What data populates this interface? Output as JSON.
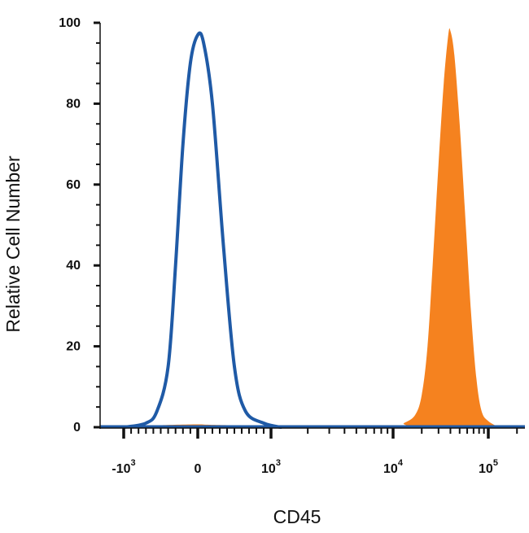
{
  "chart_data": {
    "type": "area",
    "xlabel": "CD45",
    "ylabel": "Relative Cell Number",
    "x_scale": "biexponential",
    "ylim": [
      0,
      100
    ],
    "grid": false,
    "y_ticks": [
      "0",
      "20",
      "40",
      "60",
      "80",
      "100"
    ],
    "x_ticks": [
      {
        "value": -1000,
        "base": "-10",
        "exp": "3"
      },
      {
        "value": 0,
        "base": "0",
        "exp": ""
      },
      {
        "value": 1000,
        "base": "10",
        "exp": "3"
      },
      {
        "value": 10000,
        "base": "10",
        "exp": "4"
      },
      {
        "value": 100000,
        "base": "10",
        "exp": "5"
      }
    ],
    "series": [
      {
        "style": "filled",
        "color": "#F5821F",
        "points": [
          {
            "x": -500,
            "y": 0.5
          },
          {
            "x": 0,
            "y": 0.7
          },
          {
            "x": 400,
            "y": 0.5
          },
          {
            "x": 10000,
            "y": 0
          },
          {
            "x": 13000,
            "y": 1
          },
          {
            "x": 17000,
            "y": 3
          },
          {
            "x": 20000,
            "y": 8
          },
          {
            "x": 23000,
            "y": 20
          },
          {
            "x": 26000,
            "y": 40
          },
          {
            "x": 30000,
            "y": 65
          },
          {
            "x": 34000,
            "y": 85
          },
          {
            "x": 38000,
            "y": 97
          },
          {
            "x": 40000,
            "y": 98
          },
          {
            "x": 44000,
            "y": 92
          },
          {
            "x": 50000,
            "y": 75
          },
          {
            "x": 58000,
            "y": 50
          },
          {
            "x": 66000,
            "y": 28
          },
          {
            "x": 75000,
            "y": 12
          },
          {
            "x": 85000,
            "y": 4
          },
          {
            "x": 100000,
            "y": 1.5
          },
          {
            "x": 130000,
            "y": 0
          }
        ]
      },
      {
        "style": "outline",
        "color": "#1F5AA6",
        "points": [
          {
            "x": -1000,
            "y": 0
          },
          {
            "x": -700,
            "y": 1
          },
          {
            "x": -550,
            "y": 4
          },
          {
            "x": -400,
            "y": 15
          },
          {
            "x": -300,
            "y": 40
          },
          {
            "x": -200,
            "y": 70
          },
          {
            "x": -100,
            "y": 90
          },
          {
            "x": 0,
            "y": 97
          },
          {
            "x": 80,
            "y": 95
          },
          {
            "x": 200,
            "y": 80
          },
          {
            "x": 350,
            "y": 45
          },
          {
            "x": 500,
            "y": 15
          },
          {
            "x": 650,
            "y": 4
          },
          {
            "x": 900,
            "y": 1
          },
          {
            "x": 1200,
            "y": 0
          }
        ]
      }
    ]
  }
}
